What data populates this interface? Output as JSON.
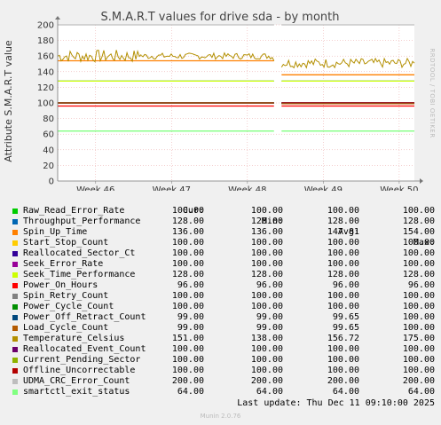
{
  "chart_data": {
    "type": "line",
    "title": "S.M.A.R.T values for drive sda - by month",
    "ylabel": "Attribute S.M.A.R.T value",
    "side_text": "RRDTOOL / TOBI OETIKER",
    "ylim": [
      0,
      200
    ],
    "yticks": [
      0,
      20,
      40,
      60,
      80,
      100,
      120,
      140,
      160,
      180,
      200
    ],
    "xlim": [
      45.5,
      50.2
    ],
    "xticks": [
      {
        "label": "Week 46",
        "value": 46
      },
      {
        "label": "Week 47",
        "value": 47
      },
      {
        "label": "Week 48",
        "value": 48
      },
      {
        "label": "Week 49",
        "value": 49
      },
      {
        "label": "Week 50",
        "value": 50
      }
    ],
    "gap": [
      48.35,
      48.45
    ],
    "series": [
      {
        "name": "Raw_Read_Error_Rate",
        "color": "#00cc00",
        "values": [
          100
        ]
      },
      {
        "name": "Throughput_Performance",
        "color": "#0066b3",
        "values": [
          128
        ]
      },
      {
        "name": "Spin_Up_Time",
        "color": "#ff8000",
        "values": [
          136,
          154
        ]
      },
      {
        "name": "Start_Stop_Count",
        "color": "#ffcc00",
        "values": [
          100
        ]
      },
      {
        "name": "Reallocated_Sector_Ct",
        "color": "#330099",
        "values": [
          100
        ]
      },
      {
        "name": "Seek_Error_Rate",
        "color": "#990099",
        "values": [
          100
        ]
      },
      {
        "name": "Seek_Time_Performance",
        "color": "#ccff00",
        "values": [
          128
        ]
      },
      {
        "name": "Power_On_Hours",
        "color": "#ff0000",
        "values": [
          96
        ]
      },
      {
        "name": "Spin_Retry_Count",
        "color": "#808080",
        "values": [
          100
        ]
      },
      {
        "name": "Power_Cycle_Count",
        "color": "#008f00",
        "values": [
          100
        ]
      },
      {
        "name": "Power_Off_Retract_Count",
        "color": "#00487d",
        "values": [
          99,
          100
        ]
      },
      {
        "name": "Load_Cycle_Count",
        "color": "#b35a00",
        "values": [
          99,
          100
        ]
      },
      {
        "name": "Temperature_Celsius",
        "color": "#b38f00",
        "values": [
          151,
          138,
          175
        ]
      },
      {
        "name": "Reallocated_Event_Count",
        "color": "#6b006b",
        "values": [
          100
        ]
      },
      {
        "name": "Current_Pending_Sector",
        "color": "#8fb300",
        "values": [
          100
        ]
      },
      {
        "name": "Offline_Uncorrectable",
        "color": "#b30000",
        "values": [
          100
        ]
      },
      {
        "name": "UDMA_CRC_Error_Count",
        "color": "#bebebe",
        "values": [
          200
        ]
      },
      {
        "name": "smartctl_exit_status",
        "color": "#80ff80",
        "values": [
          64
        ]
      }
    ]
  },
  "legend": {
    "headers": {
      "cur": "Cur:",
      "min": "Min:",
      "avg": "Avg:",
      "max": "Max:"
    },
    "rows": [
      {
        "name": "Raw_Read_Error_Rate",
        "color": "#00cc00",
        "cur": "100.00",
        "min": "100.00",
        "avg": "100.00",
        "max": "100.00"
      },
      {
        "name": "Throughput_Performance",
        "color": "#0066b3",
        "cur": "128.00",
        "min": "128.00",
        "avg": "128.00",
        "max": "128.00"
      },
      {
        "name": "Spin_Up_Time",
        "color": "#ff8000",
        "cur": "136.00",
        "min": "136.00",
        "avg": "147.81",
        "max": "154.00"
      },
      {
        "name": "Start_Stop_Count",
        "color": "#ffcc00",
        "cur": "100.00",
        "min": "100.00",
        "avg": "100.00",
        "max": "100.00"
      },
      {
        "name": "Reallocated_Sector_Ct",
        "color": "#330099",
        "cur": "100.00",
        "min": "100.00",
        "avg": "100.00",
        "max": "100.00"
      },
      {
        "name": "Seek_Error_Rate",
        "color": "#990099",
        "cur": "100.00",
        "min": "100.00",
        "avg": "100.00",
        "max": "100.00"
      },
      {
        "name": "Seek_Time_Performance",
        "color": "#ccff00",
        "cur": "128.00",
        "min": "128.00",
        "avg": "128.00",
        "max": "128.00"
      },
      {
        "name": "Power_On_Hours",
        "color": "#ff0000",
        "cur": "96.00",
        "min": "96.00",
        "avg": "96.00",
        "max": "96.00"
      },
      {
        "name": "Spin_Retry_Count",
        "color": "#808080",
        "cur": "100.00",
        "min": "100.00",
        "avg": "100.00",
        "max": "100.00"
      },
      {
        "name": "Power_Cycle_Count",
        "color": "#008f00",
        "cur": "100.00",
        "min": "100.00",
        "avg": "100.00",
        "max": "100.00"
      },
      {
        "name": "Power_Off_Retract_Count",
        "color": "#00487d",
        "cur": "99.00",
        "min": "99.00",
        "avg": "99.65",
        "max": "100.00"
      },
      {
        "name": "Load_Cycle_Count",
        "color": "#b35a00",
        "cur": "99.00",
        "min": "99.00",
        "avg": "99.65",
        "max": "100.00"
      },
      {
        "name": "Temperature_Celsius",
        "color": "#b38f00",
        "cur": "151.00",
        "min": "138.00",
        "avg": "156.72",
        "max": "175.00"
      },
      {
        "name": "Reallocated_Event_Count",
        "color": "#6b006b",
        "cur": "100.00",
        "min": "100.00",
        "avg": "100.00",
        "max": "100.00"
      },
      {
        "name": "Current_Pending_Sector",
        "color": "#8fb300",
        "cur": "100.00",
        "min": "100.00",
        "avg": "100.00",
        "max": "100.00"
      },
      {
        "name": "Offline_Uncorrectable",
        "color": "#b30000",
        "cur": "100.00",
        "min": "100.00",
        "avg": "100.00",
        "max": "100.00"
      },
      {
        "name": "UDMA_CRC_Error_Count",
        "color": "#bebebe",
        "cur": "200.00",
        "min": "200.00",
        "avg": "200.00",
        "max": "200.00"
      },
      {
        "name": "smartctl_exit_status",
        "color": "#80ff80",
        "cur": "64.00",
        "min": "64.00",
        "avg": "64.00",
        "max": "64.00"
      }
    ]
  },
  "last_update": "Last update:  Thu Dec 11 09:10:00 2025",
  "footer": "Munin 2.0.76"
}
